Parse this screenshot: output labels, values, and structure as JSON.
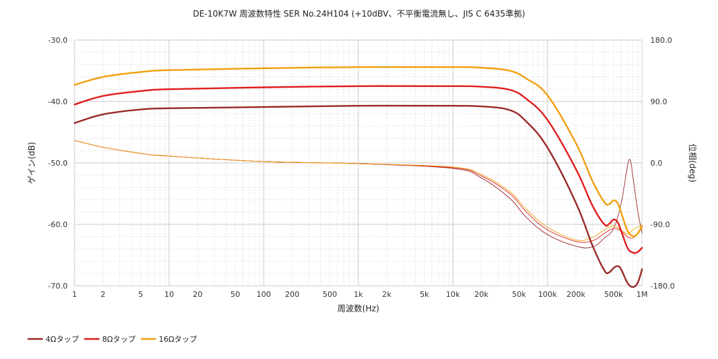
{
  "chart_data": {
    "type": "line",
    "title": "DE-10K7W 周波数特性 SER No.24H104 (+10dBV、不平衡電流無し、JIS C 6435準拠)",
    "xlabel": "周波数(Hz)",
    "ylabel_left": "ゲイン(dB)",
    "ylabel_right": "位相(deg)",
    "x_scale": "log",
    "xlim": [
      1,
      1000000
    ],
    "ylim_left": [
      -70,
      -30
    ],
    "ylim_right": [
      -180,
      180
    ],
    "grid": true,
    "legend_position": "bottom-left",
    "x_tick_labels": [
      {
        "v": 1,
        "label": "1"
      },
      {
        "v": 2,
        "label": "2"
      },
      {
        "v": 5,
        "label": "5"
      },
      {
        "v": 10,
        "label": "10"
      },
      {
        "v": 20,
        "label": "20"
      },
      {
        "v": 50,
        "label": "50"
      },
      {
        "v": 100,
        "label": "100"
      },
      {
        "v": 200,
        "label": "200"
      },
      {
        "v": 500,
        "label": "500"
      },
      {
        "v": 1000,
        "label": "1k"
      },
      {
        "v": 2000,
        "label": "2k"
      },
      {
        "v": 5000,
        "label": "5k"
      },
      {
        "v": 10000,
        "label": "10k"
      },
      {
        "v": 20000,
        "label": "20k"
      },
      {
        "v": 50000,
        "label": "50k"
      },
      {
        "v": 100000,
        "label": "100k"
      },
      {
        "v": 200000,
        "label": "200k"
      },
      {
        "v": 500000,
        "label": "500k"
      },
      {
        "v": 1000000,
        "label": "1M"
      }
    ],
    "y_left_tick_labels": [
      {
        "v": -30,
        "label": "-30.0"
      },
      {
        "v": -40,
        "label": "-40.0"
      },
      {
        "v": -50,
        "label": "-50.0"
      },
      {
        "v": -60,
        "label": "-60.0"
      },
      {
        "v": -70,
        "label": "-70.0"
      }
    ],
    "y_right_tick_labels": [
      {
        "v": 180,
        "label": "180.0"
      },
      {
        "v": 90,
        "label": "90.0"
      },
      {
        "v": 0,
        "label": "0.0"
      },
      {
        "v": -90,
        "label": "-90.0"
      },
      {
        "v": -180,
        "label": "-180.0"
      }
    ],
    "series": [
      {
        "name": "4Ωタップ",
        "color": "#9a2a2a",
        "axis": "left",
        "kind": "gain",
        "points": [
          [
            1,
            -43.5
          ],
          [
            2,
            -42.1
          ],
          [
            5,
            -41.3
          ],
          [
            10,
            -41.1
          ],
          [
            100,
            -40.9
          ],
          [
            1000,
            -40.7
          ],
          [
            10000,
            -40.7
          ],
          [
            20000,
            -40.8
          ],
          [
            40000,
            -41.4
          ],
          [
            60000,
            -43.3
          ],
          [
            100000,
            -47.5
          ],
          [
            200000,
            -56.5
          ],
          [
            300000,
            -63.5
          ],
          [
            400000,
            -67.5
          ],
          [
            450000,
            -67.8
          ],
          [
            500000,
            -67.1
          ],
          [
            550000,
            -66.8
          ],
          [
            600000,
            -67.3
          ],
          [
            700000,
            -69.5
          ],
          [
            800000,
            -70.2
          ],
          [
            900000,
            -69.5
          ],
          [
            1000000,
            -67.3
          ]
        ]
      },
      {
        "name": "8Ωタップ",
        "color": "#e01e1e",
        "axis": "left",
        "kind": "gain",
        "points": [
          [
            1,
            -40.5
          ],
          [
            2,
            -39.1
          ],
          [
            5,
            -38.3
          ],
          [
            10,
            -38.0
          ],
          [
            100,
            -37.7
          ],
          [
            1000,
            -37.5
          ],
          [
            10000,
            -37.5
          ],
          [
            20000,
            -37.6
          ],
          [
            40000,
            -38.1
          ],
          [
            60000,
            -39.6
          ],
          [
            100000,
            -43.0
          ],
          [
            200000,
            -51.0
          ],
          [
            300000,
            -57.0
          ],
          [
            400000,
            -60.0
          ],
          [
            450000,
            -59.9
          ],
          [
            500000,
            -59.2
          ],
          [
            550000,
            -59.6
          ],
          [
            600000,
            -61.0
          ],
          [
            700000,
            -63.8
          ],
          [
            800000,
            -64.6
          ],
          [
            900000,
            -64.5
          ],
          [
            1000000,
            -63.8
          ]
        ]
      },
      {
        "name": "16Ωタップ",
        "color": "#f0a010",
        "axis": "left",
        "kind": "gain",
        "points": [
          [
            1,
            -37.3
          ],
          [
            2,
            -36.0
          ],
          [
            5,
            -35.2
          ],
          [
            10,
            -34.9
          ],
          [
            100,
            -34.6
          ],
          [
            1000,
            -34.4
          ],
          [
            10000,
            -34.4
          ],
          [
            20000,
            -34.5
          ],
          [
            40000,
            -35.0
          ],
          [
            60000,
            -36.3
          ],
          [
            100000,
            -39.0
          ],
          [
            200000,
            -46.8
          ],
          [
            300000,
            -53.0
          ],
          [
            400000,
            -56.4
          ],
          [
            450000,
            -56.7
          ],
          [
            500000,
            -56.1
          ],
          [
            550000,
            -56.5
          ],
          [
            600000,
            -58.0
          ],
          [
            700000,
            -61.0
          ],
          [
            800000,
            -61.9
          ],
          [
            900000,
            -61.5
          ],
          [
            1000000,
            -60.2
          ]
        ]
      },
      {
        "name": "4Ωタップ",
        "color": "#9a2a2a",
        "axis": "right",
        "kind": "phase",
        "points": [
          [
            1,
            33
          ],
          [
            2,
            23
          ],
          [
            5,
            14
          ],
          [
            10,
            10
          ],
          [
            100,
            2
          ],
          [
            1000,
            -1
          ],
          [
            10000,
            -8
          ],
          [
            20000,
            -22
          ],
          [
            40000,
            -52
          ],
          [
            60000,
            -80
          ],
          [
            100000,
            -105
          ],
          [
            200000,
            -122
          ],
          [
            300000,
            -123
          ],
          [
            400000,
            -110
          ],
          [
            500000,
            -96
          ],
          [
            600000,
            -60
          ],
          [
            700000,
            -5
          ],
          [
            750000,
            4
          ],
          [
            800000,
            -20
          ],
          [
            900000,
            -70
          ],
          [
            1000000,
            -103
          ]
        ]
      },
      {
        "name": "8Ωタップ",
        "color": "#e01e1e",
        "axis": "right",
        "kind": "phase",
        "points": [
          [
            1,
            33
          ],
          [
            2,
            23
          ],
          [
            5,
            14
          ],
          [
            10,
            10
          ],
          [
            100,
            2
          ],
          [
            1000,
            -1
          ],
          [
            10000,
            -7
          ],
          [
            20000,
            -19
          ],
          [
            40000,
            -45
          ],
          [
            60000,
            -72
          ],
          [
            100000,
            -98
          ],
          [
            200000,
            -115
          ],
          [
            300000,
            -114
          ],
          [
            400000,
            -103
          ],
          [
            500000,
            -96
          ],
          [
            600000,
            -100
          ],
          [
            700000,
            -108
          ],
          [
            800000,
            -110
          ],
          [
            900000,
            -103
          ],
          [
            1000000,
            -95
          ]
        ]
      },
      {
        "name": "16Ωタップ",
        "color": "#f0a010",
        "axis": "right",
        "kind": "phase",
        "points": [
          [
            1,
            33
          ],
          [
            2,
            23
          ],
          [
            5,
            14
          ],
          [
            10,
            10
          ],
          [
            100,
            2
          ],
          [
            1000,
            -1
          ],
          [
            10000,
            -6
          ],
          [
            20000,
            -17
          ],
          [
            40000,
            -42
          ],
          [
            60000,
            -68
          ],
          [
            100000,
            -94
          ],
          [
            200000,
            -113
          ],
          [
            300000,
            -109
          ],
          [
            400000,
            -98
          ],
          [
            500000,
            -92
          ],
          [
            600000,
            -98
          ],
          [
            700000,
            -104
          ],
          [
            800000,
            -98
          ],
          [
            900000,
            -94
          ],
          [
            1000000,
            -92
          ]
        ]
      }
    ],
    "legend": [
      {
        "name": "4Ωタップ",
        "color": "#9a2a2a"
      },
      {
        "name": "8Ωタップ",
        "color": "#e01e1e"
      },
      {
        "name": "16Ωタップ",
        "color": "#f0a010"
      }
    ]
  }
}
